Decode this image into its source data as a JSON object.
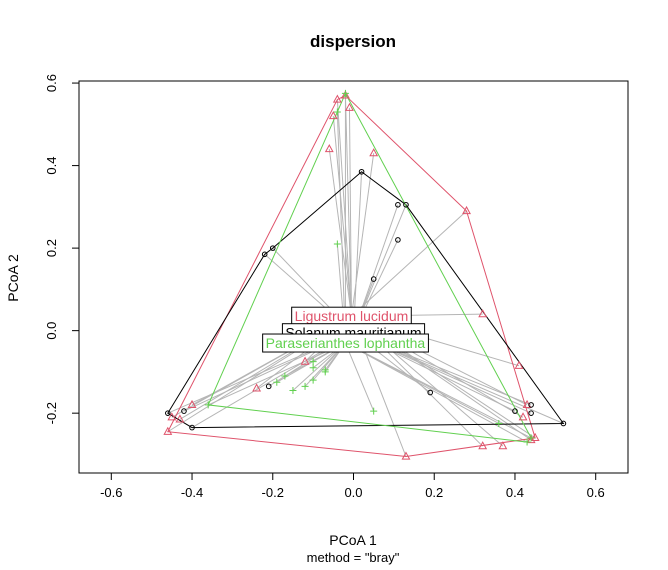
{
  "chart_data": {
    "type": "scatter",
    "title": "dispersion",
    "xlabel": "PCoA 1",
    "ylabel": "PCoA 2",
    "subtitle": "method = \"bray\"",
    "xlim": [
      -0.6,
      0.6
    ],
    "ylim": [
      -0.3,
      0.6
    ],
    "xticks": [
      "-0.6",
      "-0.4",
      "-0.2",
      "0.0",
      "0.2",
      "0.4",
      "0.6"
    ],
    "yticks": [
      "-0.2",
      "0.0",
      "0.2",
      "0.4",
      "0.6"
    ],
    "grid": false,
    "groups": [
      {
        "name": "Ligustrum lucidum",
        "color": "#DF536B",
        "marker": "triangle",
        "centroid": [
          -0.005,
          0.035
        ],
        "points": [
          [
            -0.04,
            0.56
          ],
          [
            -0.02,
            0.57
          ],
          [
            -0.01,
            0.54
          ],
          [
            -0.05,
            0.52
          ],
          [
            -0.06,
            0.44
          ],
          [
            0.05,
            0.43
          ],
          [
            0.28,
            0.29
          ],
          [
            0.32,
            0.04
          ],
          [
            0.41,
            -0.085
          ],
          [
            0.43,
            -0.18
          ],
          [
            0.42,
            -0.21
          ],
          [
            0.45,
            -0.26
          ],
          [
            0.44,
            -0.265
          ],
          [
            0.37,
            -0.28
          ],
          [
            0.32,
            -0.28
          ],
          [
            0.13,
            -0.305
          ],
          [
            -0.46,
            -0.245
          ],
          [
            -0.43,
            -0.215
          ],
          [
            -0.45,
            -0.21
          ],
          [
            -0.4,
            -0.18
          ],
          [
            -0.24,
            -0.14
          ],
          [
            -0.12,
            -0.075
          ]
        ],
        "hull": [
          [
            -0.02,
            0.57
          ],
          [
            0.28,
            0.29
          ],
          [
            0.45,
            -0.26
          ],
          [
            0.13,
            -0.305
          ],
          [
            -0.46,
            -0.245
          ],
          [
            -0.04,
            0.56
          ]
        ]
      },
      {
        "name": "Solanum mauritianum",
        "color": "#000000",
        "marker": "circle",
        "centroid": [
          0.0,
          -0.005
        ],
        "points": [
          [
            0.02,
            0.385
          ],
          [
            0.11,
            0.305
          ],
          [
            0.13,
            0.305
          ],
          [
            0.11,
            0.22
          ],
          [
            0.05,
            0.125
          ],
          [
            -0.2,
            0.2
          ],
          [
            -0.22,
            0.185
          ],
          [
            0.52,
            -0.225
          ],
          [
            0.44,
            -0.18
          ],
          [
            0.44,
            -0.2
          ],
          [
            0.4,
            -0.195
          ],
          [
            0.19,
            -0.15
          ],
          [
            -0.21,
            -0.135
          ],
          [
            -0.46,
            -0.2
          ],
          [
            -0.42,
            -0.195
          ],
          [
            -0.4,
            -0.235
          ]
        ],
        "hull": [
          [
            0.02,
            0.385
          ],
          [
            0.13,
            0.305
          ],
          [
            0.52,
            -0.225
          ],
          [
            -0.4,
            -0.235
          ],
          [
            -0.46,
            -0.2
          ],
          [
            -0.22,
            0.185
          ],
          [
            -0.2,
            0.2
          ]
        ]
      },
      {
        "name": "Paraserianthes lophantha",
        "color": "#61D04F",
        "marker": "plus",
        "centroid": [
          -0.02,
          -0.03
        ],
        "points": [
          [
            -0.02,
            0.575
          ],
          [
            -0.04,
            0.53
          ],
          [
            -0.04,
            0.21
          ],
          [
            -0.36,
            -0.18
          ],
          [
            -0.19,
            -0.125
          ],
          [
            -0.17,
            -0.11
          ],
          [
            -0.15,
            -0.145
          ],
          [
            -0.12,
            -0.135
          ],
          [
            -0.1,
            -0.12
          ],
          [
            -0.1,
            -0.09
          ],
          [
            -0.07,
            -0.1
          ],
          [
            -0.07,
            -0.095
          ],
          [
            -0.1,
            -0.075
          ],
          [
            0.05,
            -0.195
          ],
          [
            0.43,
            -0.27
          ],
          [
            0.44,
            -0.26
          ],
          [
            0.36,
            -0.225
          ]
        ],
        "hull": [
          [
            -0.02,
            0.575
          ],
          [
            0.44,
            -0.26
          ],
          [
            0.43,
            -0.27
          ],
          [
            -0.36,
            -0.18
          ],
          [
            -0.04,
            0.53
          ]
        ]
      }
    ]
  }
}
